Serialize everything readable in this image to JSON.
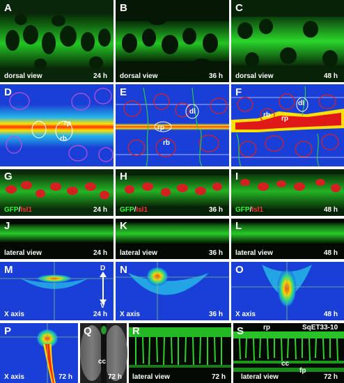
{
  "figure": {
    "panels": [
      {
        "letter": "A",
        "caption": "dorsal view",
        "time": "24 h"
      },
      {
        "letter": "B",
        "caption": "dorsal view",
        "time": "36 h"
      },
      {
        "letter": "C",
        "caption": "dorsal view",
        "time": "48 h"
      },
      {
        "letter": "D",
        "labels": [
          "rp",
          "rb"
        ]
      },
      {
        "letter": "E",
        "labels": [
          "rp",
          "rb",
          "dl"
        ]
      },
      {
        "letter": "F",
        "labels": [
          "rp",
          "rb",
          "dl"
        ]
      },
      {
        "letter": "G",
        "stain_gfp": "GFP",
        "stain_sep": "/",
        "stain_isl": "Isl1",
        "time": "24 h"
      },
      {
        "letter": "H",
        "stain_gfp": "GFP",
        "stain_sep": "/",
        "stain_isl": "Isl1",
        "time": "36 h"
      },
      {
        "letter": "I",
        "stain_gfp": "GFP",
        "stain_sep": "/",
        "stain_isl": "Isl1",
        "time": "48 h"
      },
      {
        "letter": "J",
        "caption": "lateral view",
        "time": "24 h"
      },
      {
        "letter": "K",
        "caption": "lateral view",
        "time": "36 h"
      },
      {
        "letter": "L",
        "caption": "lateral view",
        "time": "48 h"
      },
      {
        "letter": "M",
        "caption": "X axis",
        "time": "24 h",
        "axis_top": "D",
        "axis_bottom": "V"
      },
      {
        "letter": "N",
        "caption": "X axis",
        "time": "36 h"
      },
      {
        "letter": "O",
        "caption": "X axis",
        "time": "48 h"
      },
      {
        "letter": "P",
        "caption": "X axis",
        "time": "72 h"
      },
      {
        "letter": "Q",
        "labels": [
          "cc"
        ],
        "time": "72 h"
      },
      {
        "letter": "R",
        "caption": "lateral view",
        "time": "72 h"
      },
      {
        "letter": "S",
        "caption": "lateral view",
        "time": "72 h",
        "labels": [
          "rp",
          "cc",
          "fp"
        ],
        "strain": "SqET33-10"
      }
    ]
  },
  "colors": {
    "gfp_green": "#33ee33",
    "isl1_red": "#dd2222",
    "heatmap_blue": "#1a3fd6",
    "background": "#000000",
    "label": "#ffffff"
  }
}
